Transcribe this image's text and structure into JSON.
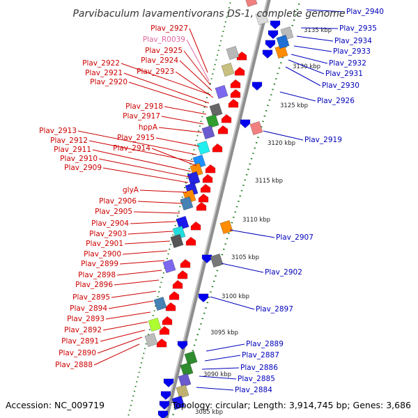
{
  "title": "Parvibaculum lavamentivorans DS-1, complete genome",
  "footer": {
    "accession": "Accession: NC_009719",
    "summary": "Topology: circular; Length: 3,914,745 bp; Genes: 3,686"
  },
  "colors": {
    "left_label": "#cc0000",
    "rna_label": "#e0679e",
    "right_label": "#0000bb",
    "forward_arrow": "#ff0000",
    "reverse_arrow": "#0000ee",
    "backbone": "#999999",
    "tick": "#1a7a1a"
  },
  "scale_ticks": [
    "3135 kbp",
    "3130 kbp",
    "3125 kbp",
    "3120 kbp",
    "3115 kbp",
    "3110 kbp",
    "3105 kbp",
    "3100 kbp",
    "3095 kbp",
    "3090 kbp",
    "3085 kbp"
  ],
  "left_labels": [
    {
      "text": "Plav_2927",
      "kind": "gene"
    },
    {
      "text": "Plav_R0039",
      "kind": "rna"
    },
    {
      "text": "Plav_2925",
      "kind": "gene"
    },
    {
      "text": "Plav_2924",
      "kind": "gene"
    },
    {
      "text": "Plav_2922",
      "kind": "gene"
    },
    {
      "text": "Plav_2923",
      "kind": "gene"
    },
    {
      "text": "Plav_2921",
      "kind": "gene"
    },
    {
      "text": "Plav_2920",
      "kind": "gene"
    },
    {
      "text": "Plav_2918",
      "kind": "gene"
    },
    {
      "text": "Plav_2917",
      "kind": "gene"
    },
    {
      "text": "hppA",
      "kind": "gene"
    },
    {
      "text": "Plav_2913",
      "kind": "gene"
    },
    {
      "text": "Plav_2915",
      "kind": "gene"
    },
    {
      "text": "Plav_2912",
      "kind": "gene"
    },
    {
      "text": "Plav_2914",
      "kind": "gene"
    },
    {
      "text": "Plav_2911",
      "kind": "gene"
    },
    {
      "text": "Plav_2910",
      "kind": "gene"
    },
    {
      "text": "Plav_2909",
      "kind": "gene"
    },
    {
      "text": "glyA",
      "kind": "gene"
    },
    {
      "text": "Plav_2906",
      "kind": "gene"
    },
    {
      "text": "Plav_2905",
      "kind": "gene"
    },
    {
      "text": "Plav_2904",
      "kind": "gene"
    },
    {
      "text": "Plav_2903",
      "kind": "gene"
    },
    {
      "text": "Plav_2901",
      "kind": "gene"
    },
    {
      "text": "Plav_2900",
      "kind": "gene"
    },
    {
      "text": "Plav_2899",
      "kind": "gene"
    },
    {
      "text": "Plav_2898",
      "kind": "gene"
    },
    {
      "text": "Plav_2896",
      "kind": "gene"
    },
    {
      "text": "Plav_2895",
      "kind": "gene"
    },
    {
      "text": "Plav_2894",
      "kind": "gene"
    },
    {
      "text": "Plav_2893",
      "kind": "gene"
    },
    {
      "text": "Plav_2892",
      "kind": "gene"
    },
    {
      "text": "Plav_2891",
      "kind": "gene"
    },
    {
      "text": "Plav_2890",
      "kind": "gene"
    },
    {
      "text": "Plav_2888",
      "kind": "gene"
    }
  ],
  "right_labels": [
    "Plav_2940",
    "Plav_2935",
    "Plav_2934",
    "Plav_2933",
    "Plav_2932",
    "Plav_2931",
    "Plav_2930",
    "Plav_2926",
    "Plav_2919",
    "Plav_2907",
    "Plav_2902",
    "Plav_2897",
    "Plav_2889",
    "Plav_2887",
    "Plav_2886",
    "Plav_2885",
    "Plav_2884"
  ]
}
